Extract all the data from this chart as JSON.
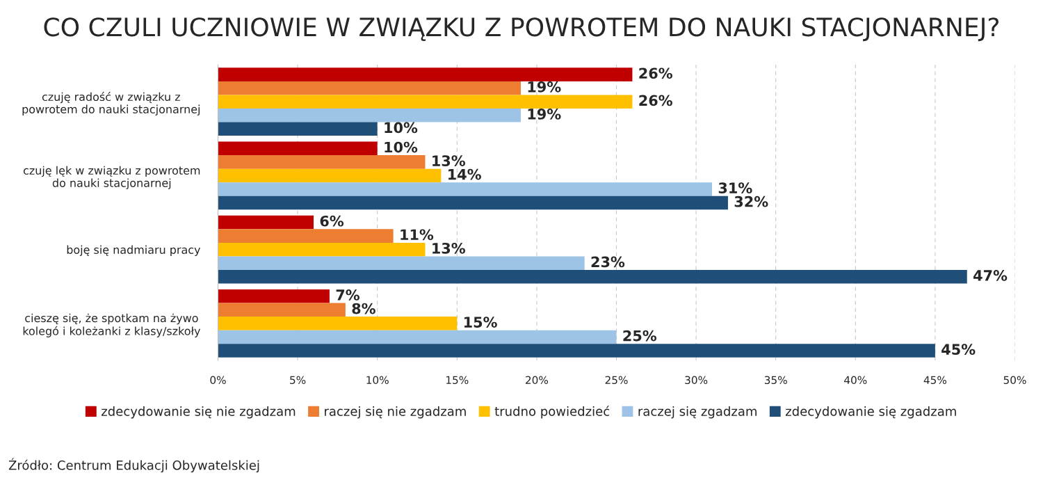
{
  "chart_data": {
    "type": "bar",
    "orientation": "horizontal",
    "title": "CO CZULI UCZNIOWIE W ZWIĄZKU Z POWROTEM DO NAUKI STACJONARNEJ?",
    "categories": [
      "czuję radość w związku z\npowrotem do nauki stacjonarnej",
      "czuję lęk w związku z powrotem\ndo nauki stacjonarnej",
      "boję się nadmiaru pracy",
      "cieszę się, że spotkam na żywo\nkolegó i koleżanki z klasy/szkoły"
    ],
    "series": [
      {
        "name": "zdecydowanie się nie zgadzam",
        "color": "#c00000",
        "values": [
          26,
          10,
          6,
          7
        ],
        "value_labels": [
          "26%",
          "10%",
          "6%",
          "7%"
        ]
      },
      {
        "name": "raczej się nie zgadzam",
        "color": "#ed7d31",
        "values": [
          19,
          13,
          11,
          8
        ],
        "value_labels": [
          "19%",
          "13%",
          "11%",
          "8%"
        ]
      },
      {
        "name": "trudno powiedzieć",
        "color": "#ffc000",
        "values": [
          26,
          14,
          13,
          15
        ],
        "value_labels": [
          "26%",
          "14%",
          "13%",
          "15%"
        ]
      },
      {
        "name": "raczej się zgadzam",
        "color": "#9dc3e6",
        "values": [
          19,
          31,
          23,
          25
        ],
        "value_labels": [
          "19%",
          "31%",
          "23%",
          "25%"
        ]
      },
      {
        "name": "zdecydowanie się zgadzam",
        "color": "#1f4e79",
        "values": [
          10,
          32,
          47,
          45
        ],
        "value_labels": [
          "10%",
          "32%",
          "47%",
          "45%"
        ]
      }
    ],
    "xlim": [
      0,
      50
    ],
    "xticks": [
      {
        "value": 0,
        "label": "0%"
      },
      {
        "value": 5,
        "label": "5%"
      },
      {
        "value": 10,
        "label": "10%"
      },
      {
        "value": 15,
        "label": "15%"
      },
      {
        "value": 20,
        "label": "20%"
      },
      {
        "value": 25,
        "label": "25%"
      },
      {
        "value": 30,
        "label": "30%"
      },
      {
        "value": 35,
        "label": "35%"
      },
      {
        "value": 40,
        "label": "40%"
      },
      {
        "value": 45,
        "label": "45%"
      },
      {
        "value": 50,
        "label": "50%"
      }
    ],
    "grid": "x",
    "legend": "bottom",
    "annotations": [
      "Źródło: Centrum Edukacji Obywatelskiej"
    ]
  }
}
